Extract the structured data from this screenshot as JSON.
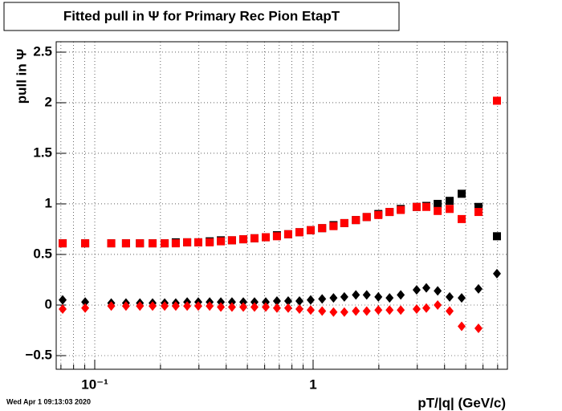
{
  "chart_data": {
    "type": "scatter",
    "title": "Fitted pull in  Ψ  for Primary Rec Pion EtapT",
    "y_label": "pull in  Ψ",
    "x_label": "pT/|q| (GeV/c)",
    "date": "Wed Apr  1 09:13:03 2020",
    "log_x": true,
    "grid": true,
    "xlim": [
      0.0666,
      7.76
    ],
    "ylim": [
      -0.635,
      2.603
    ],
    "xticks": [
      {
        "value": 0.1,
        "label": "10⁻¹"
      },
      1
    ],
    "xminorticks": [
      0.07,
      0.08,
      0.09,
      0.2,
      0.3,
      0.4,
      0.5,
      0.6,
      0.7,
      0.8,
      0.9,
      2,
      3,
      4,
      5,
      6,
      7
    ],
    "yticks": [
      {
        "value": -0.5,
        "label": "−0.5"
      },
      0,
      0.5,
      1,
      1.5,
      2,
      2.5
    ],
    "x": [
      0.0713,
      0.0904,
      0.119,
      0.139,
      0.161,
      0.184,
      0.209,
      0.235,
      0.265,
      0.298,
      0.336,
      0.378,
      0.425,
      0.479,
      0.539,
      0.607,
      0.683,
      0.769,
      0.866,
      0.975,
      1.1,
      1.24,
      1.39,
      1.57,
      1.76,
      1.99,
      2.24,
      2.52,
      2.98,
      3.3,
      3.72,
      4.22,
      4.79,
      5.72,
      6.95
    ],
    "series": [
      {
        "color": "#000000",
        "marker": "square",
        "values": [
          0.61,
          0.61,
          0.61,
          0.61,
          0.61,
          0.61,
          0.61,
          0.62,
          0.62,
          0.62,
          0.63,
          0.64,
          0.64,
          0.65,
          0.66,
          0.67,
          0.69,
          0.7,
          0.72,
          0.74,
          0.76,
          0.79,
          0.81,
          0.84,
          0.87,
          0.9,
          0.92,
          0.95,
          0.97,
          0.98,
          1.0,
          1.03,
          1.1,
          0.97,
          0.68
        ]
      },
      {
        "color": "#ff0000",
        "marker": "square",
        "values": [
          0.61,
          0.61,
          0.61,
          0.61,
          0.61,
          0.61,
          0.61,
          0.61,
          0.62,
          0.62,
          0.62,
          0.63,
          0.64,
          0.65,
          0.66,
          0.67,
          0.68,
          0.7,
          0.72,
          0.74,
          0.76,
          0.78,
          0.81,
          0.84,
          0.87,
          0.89,
          0.92,
          0.94,
          0.97,
          0.97,
          0.93,
          0.95,
          0.85,
          0.92,
          2.02
        ]
      },
      {
        "color": "#000000",
        "marker": "diamond",
        "values": [
          0.05,
          0.03,
          0.02,
          0.02,
          0.02,
          0.02,
          0.02,
          0.02,
          0.03,
          0.03,
          0.03,
          0.03,
          0.03,
          0.03,
          0.03,
          0.03,
          0.04,
          0.04,
          0.04,
          0.05,
          0.06,
          0.07,
          0.08,
          0.1,
          0.1,
          0.08,
          0.07,
          0.1,
          0.15,
          0.17,
          0.14,
          0.08,
          0.07,
          0.16,
          0.31
        ]
      },
      {
        "color": "#ff0000",
        "marker": "diamond",
        "values": [
          -0.04,
          -0.03,
          -0.01,
          -0.01,
          -0.01,
          -0.01,
          -0.01,
          -0.01,
          -0.01,
          -0.01,
          -0.01,
          -0.02,
          -0.02,
          -0.02,
          -0.02,
          -0.02,
          -0.03,
          -0.03,
          -0.04,
          -0.05,
          -0.06,
          -0.07,
          -0.07,
          -0.06,
          -0.06,
          -0.05,
          -0.05,
          -0.05,
          -0.04,
          -0.03,
          0.0,
          -0.06,
          -0.21,
          -0.23,
          null
        ]
      }
    ]
  }
}
